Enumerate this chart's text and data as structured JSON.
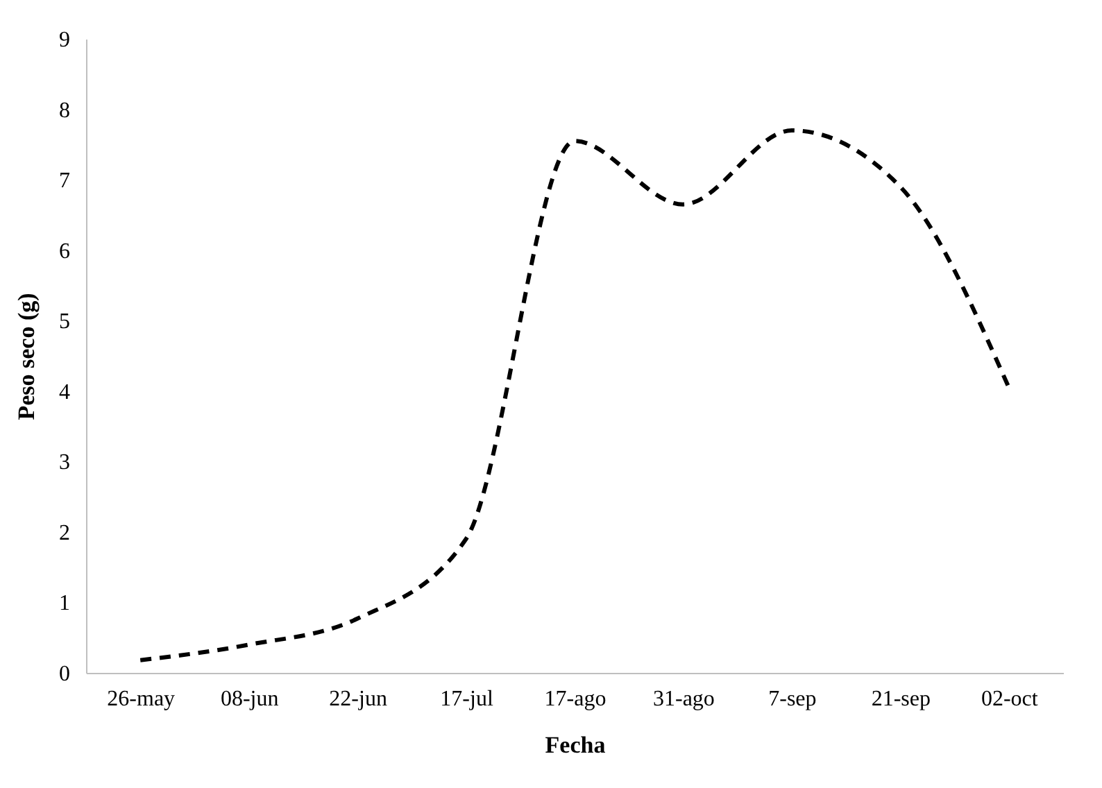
{
  "chart_data": {
    "type": "line",
    "xlabel": "Fecha",
    "ylabel": "Peso seco (g)",
    "categories": [
      "26-may",
      "08-jun",
      "22-jun",
      "17-jul",
      "17-ago",
      "31-ago",
      "7-sep",
      "21-sep",
      "02-oct"
    ],
    "series": [
      {
        "color": "#000000",
        "values": [
          0.18,
          0.4,
          0.77,
          1.9,
          7.55,
          6.65,
          7.7,
          6.9,
          4.05
        ]
      }
    ],
    "ylim": [
      0,
      9
    ],
    "yticks": [
      0,
      1,
      2,
      3,
      4,
      5,
      6,
      7,
      8,
      9
    ],
    "grid": false,
    "marker": "none",
    "line_style": "dashed"
  }
}
